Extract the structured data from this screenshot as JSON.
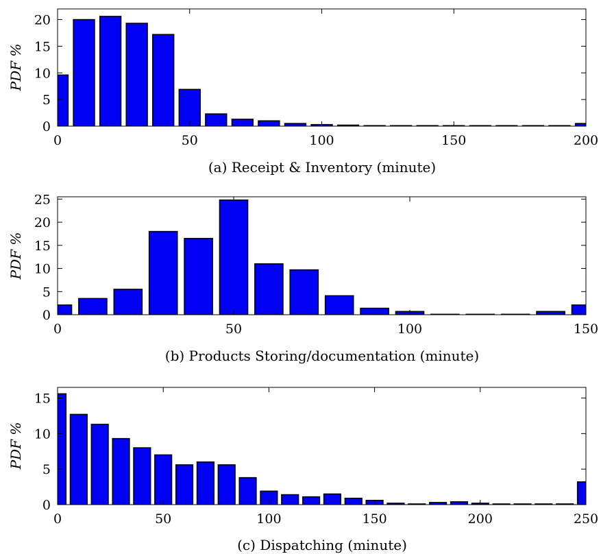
{
  "colors": {
    "bar_fill": "#0000f5",
    "bar_stroke": "#000000",
    "axis": "#000000",
    "background": "#ffffff"
  },
  "chart_data": [
    {
      "type": "bar",
      "caption": "(a) Receipt & Inventory (minute)",
      "ylabel": "PDF %",
      "xlim": [
        0,
        200
      ],
      "ylim": [
        0,
        22
      ],
      "xticks": [
        0,
        50,
        100,
        150,
        200
      ],
      "yticks": [
        0,
        5,
        10,
        15,
        20
      ],
      "bin_width": 10,
      "x": [
        0,
        10,
        20,
        30,
        40,
        50,
        60,
        70,
        80,
        90,
        100,
        110,
        120,
        130,
        140,
        150,
        160,
        170,
        180,
        190,
        200
      ],
      "values": [
        9.6,
        20.0,
        20.6,
        19.3,
        17.2,
        6.9,
        2.3,
        1.3,
        1.0,
        0.5,
        0.3,
        0.2,
        0.1,
        0.1,
        0.1,
        0.1,
        0.1,
        0.1,
        0.1,
        0.1,
        0.5
      ],
      "grid": false
    },
    {
      "type": "bar",
      "caption": "(b) Products Storing/documentation (minute)",
      "ylabel": "PDF %",
      "xlim": [
        0,
        150
      ],
      "ylim": [
        0,
        25.5
      ],
      "xticks": [
        0,
        50,
        100,
        150
      ],
      "yticks": [
        0,
        5,
        10,
        15,
        20,
        25
      ],
      "bin_width": 10,
      "x": [
        0,
        10,
        20,
        30,
        40,
        50,
        60,
        70,
        80,
        90,
        100,
        110,
        120,
        130,
        140,
        150
      ],
      "values": [
        2.1,
        3.5,
        5.5,
        18.0,
        16.5,
        24.8,
        11.0,
        9.7,
        4.1,
        1.4,
        0.7,
        0.1,
        0.1,
        0.1,
        0.7,
        2.1
      ],
      "grid": false
    },
    {
      "type": "bar",
      "caption": "(c) Dispatching (minute)",
      "ylabel": "PDF %",
      "xlim": [
        0,
        250
      ],
      "ylim": [
        0,
        16.5
      ],
      "xticks": [
        0,
        50,
        100,
        150,
        200,
        250
      ],
      "yticks": [
        0,
        5,
        10,
        15
      ],
      "bin_width": 10,
      "x": [
        0,
        10,
        20,
        30,
        40,
        50,
        60,
        70,
        80,
        90,
        100,
        110,
        120,
        130,
        140,
        150,
        160,
        170,
        180,
        190,
        200,
        210,
        220,
        230,
        240,
        250
      ],
      "values": [
        15.6,
        12.7,
        11.3,
        9.3,
        8.0,
        7.0,
        5.6,
        6.0,
        5.6,
        3.8,
        1.9,
        1.4,
        1.1,
        1.5,
        0.9,
        0.6,
        0.2,
        0.1,
        0.3,
        0.4,
        0.2,
        0.1,
        0.1,
        0.1,
        0.1,
        3.2
      ],
      "grid": false
    }
  ]
}
